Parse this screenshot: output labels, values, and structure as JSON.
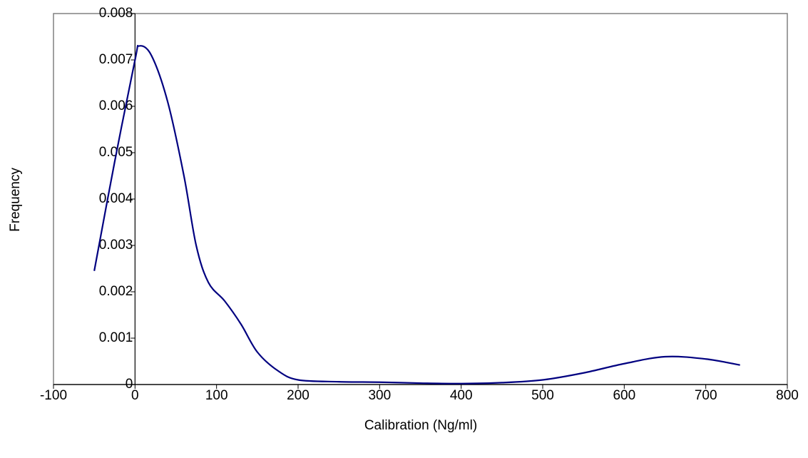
{
  "chart_data": {
    "type": "line",
    "x_label": "Calibration (Ng/ml)",
    "y_label": "Frequency",
    "x": [
      -50,
      -25,
      0,
      5,
      20,
      40,
      60,
      75,
      90,
      110,
      130,
      150,
      175,
      200,
      250,
      300,
      350,
      400,
      450,
      500,
      550,
      600,
      650,
      700,
      742
    ],
    "series": [
      {
        "color": "#000080",
        "values": [
          0.00245,
          0.0048,
          0.007,
          0.0073,
          0.0071,
          0.0061,
          0.0045,
          0.003,
          0.0022,
          0.0018,
          0.0013,
          0.0007,
          0.0003,
          0.0001,
          6e-05,
          5e-05,
          3e-05,
          2e-05,
          4e-05,
          0.0001,
          0.00025,
          0.00045,
          0.0006,
          0.00055,
          0.00042
        ]
      }
    ],
    "xlim": [
      -100,
      800
    ],
    "xticks": [
      -100,
      0,
      100,
      200,
      300,
      400,
      500,
      600,
      700,
      800
    ],
    "ylim": [
      0,
      0.008
    ],
    "yticks": [
      0,
      0.001,
      0.002,
      0.003,
      0.004,
      0.005,
      0.006,
      0.007,
      0.008
    ],
    "grid": false
  }
}
